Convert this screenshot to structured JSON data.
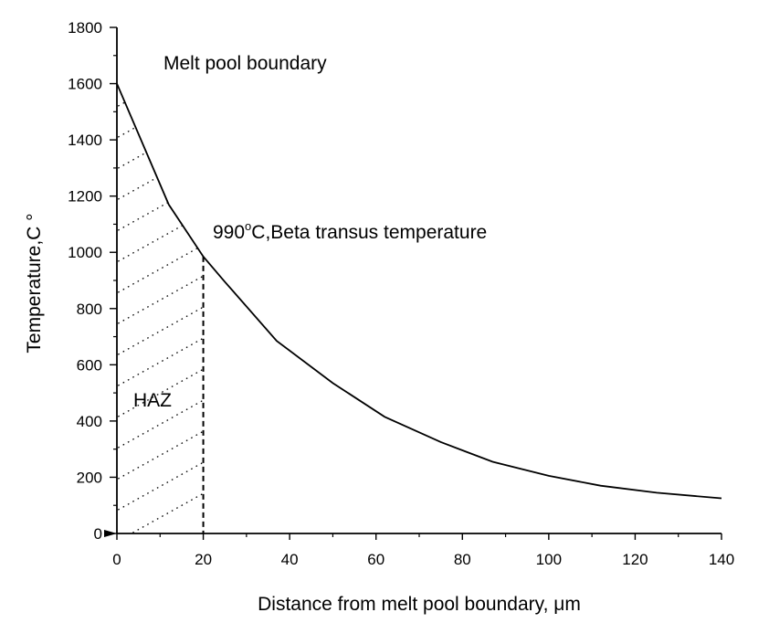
{
  "chart_data": {
    "type": "line",
    "title": "",
    "xlabel": "Distance from melt pool boundary, μm",
    "ylabel": "Temperature,C °",
    "xlim": [
      0,
      140
    ],
    "ylim": [
      0,
      1800
    ],
    "x_ticks": [
      0,
      20,
      40,
      60,
      80,
      100,
      120,
      140
    ],
    "y_ticks": [
      0,
      200,
      400,
      600,
      800,
      1000,
      1200,
      1400,
      1600,
      1800
    ],
    "x_minor_step": 10,
    "y_minor_step": 100,
    "grid": false,
    "series": [
      {
        "x": [
          0,
          12,
          20,
          25,
          37,
          50,
          62,
          75,
          87,
          100,
          112,
          125,
          140
        ],
        "y": [
          1600,
          1170,
          985,
          895,
          685,
          535,
          415,
          325,
          255,
          205,
          170,
          145,
          125
        ]
      }
    ],
    "hatched_region": {
      "x_start": 0,
      "x_end": 20,
      "label": "HAZ"
    },
    "marker_line": {
      "x": 20,
      "y_top": 985
    },
    "annotations": {
      "top": "Melt pool boundary",
      "transus_value": "990",
      "transus_degree": "o",
      "transus_text": "C,Beta transus temperature",
      "haz": "HAZ"
    }
  }
}
